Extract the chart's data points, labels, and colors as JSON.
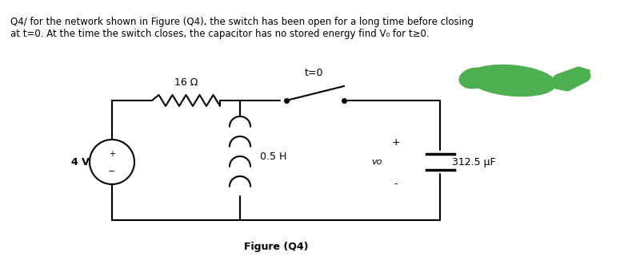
{
  "title_text": "Q4/ for the network shown in Figure (Q4), the switch has been open for a long time before closing\nat t=0. At the time the switch closes, the capacitor has no stored energy find V₀ for t≥0.",
  "figure_label": "Figure (Q4)",
  "bg_color": "#ffffff",
  "text_color": "#000000",
  "line_color": "#000000",
  "resistor_label": "16 Ω",
  "inductor_label": "0.5 H",
  "capacitor_label": "312.5 μF",
  "voltage_label": "4 V",
  "switch_label": "t=0",
  "vo_label": "vo",
  "plus_label": "+",
  "minus_label": "-",
  "green_blob_color": "#4caf50"
}
